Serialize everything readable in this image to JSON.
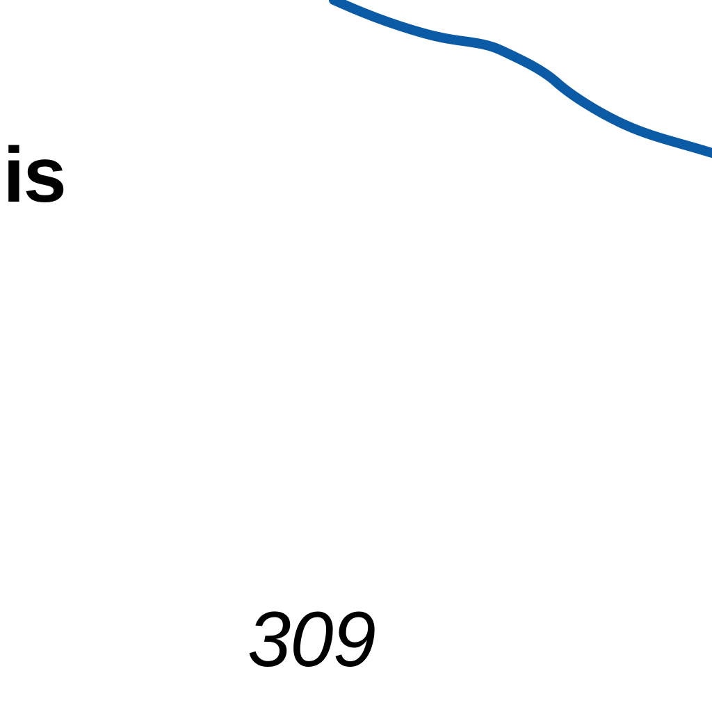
{
  "map": {
    "place_label": "uis",
    "route_number": "309",
    "water_color": "#0a5aa6",
    "background_color": "#ffffff",
    "text_color": "#000000"
  }
}
